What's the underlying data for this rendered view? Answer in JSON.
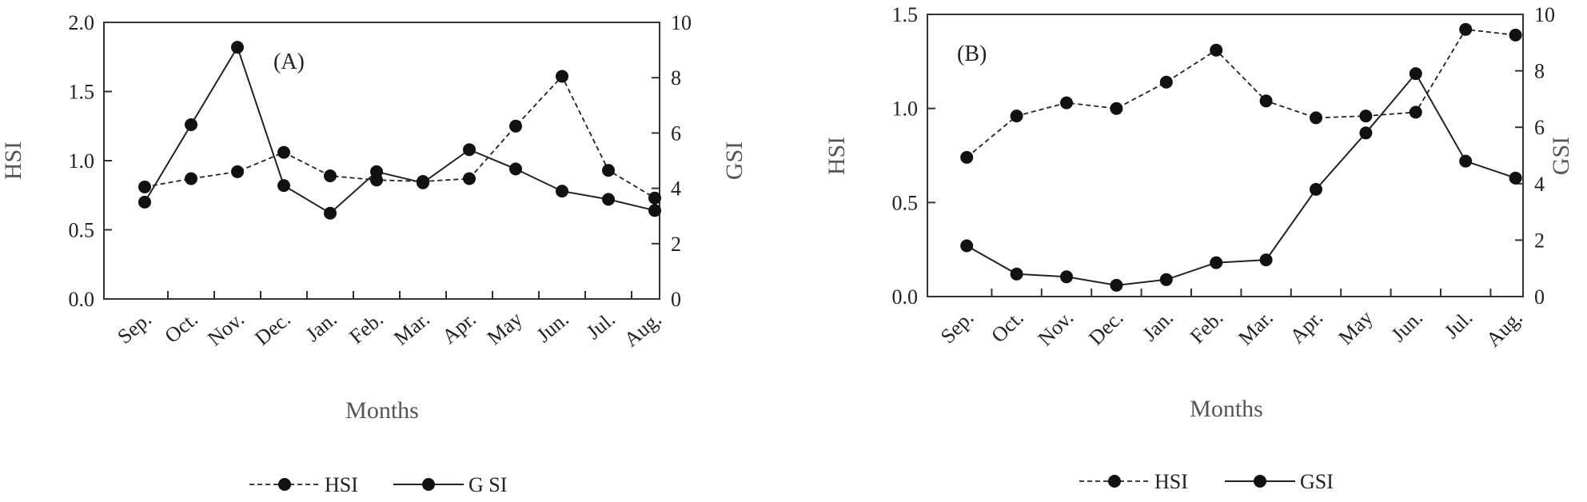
{
  "chart_data": [
    {
      "type": "line",
      "title": "",
      "annotation": "(A)",
      "categories": [
        "Sep.",
        "Oct.",
        "Nov.",
        "Dec.",
        "Jan.",
        "Feb.",
        "Mar.",
        "Apr.",
        "May",
        "Jun.",
        "Jul.",
        "Aug."
      ],
      "xlabel": "Months",
      "ylabel": "HSI",
      "y2label": "GSI",
      "ylim": [
        0,
        2.0
      ],
      "y2lim": [
        0,
        10
      ],
      "yticks": [
        "0.0",
        "0.5",
        "1.0",
        "1.5",
        "2.0"
      ],
      "y2ticks": [
        "0",
        "2",
        "4",
        "6",
        "8",
        "10"
      ],
      "grid": false,
      "legend_position": "bottom",
      "series": [
        {
          "name": "HSI",
          "axis": "left",
          "line_style": "dashed",
          "values": [
            0.81,
            0.87,
            0.92,
            1.06,
            0.89,
            0.86,
            0.85,
            0.87,
            1.25,
            1.61,
            0.93,
            0.73
          ]
        },
        {
          "name": "GSI",
          "axis": "right",
          "line_style": "solid",
          "values": [
            3.5,
            6.3,
            9.1,
            4.1,
            3.1,
            4.6,
            4.2,
            5.4,
            4.7,
            3.9,
            3.6,
            3.2
          ]
        }
      ]
    },
    {
      "type": "line",
      "title": "",
      "annotation": "(B)",
      "categories": [
        "Sep.",
        "Oct.",
        "Nov.",
        "Dec.",
        "Jan.",
        "Feb.",
        "Mar.",
        "Apr.",
        "May",
        "Jun.",
        "Jul.",
        "Aug."
      ],
      "xlabel": "Months",
      "ylabel": "HSI",
      "y2label": "GSI",
      "ylim": [
        0,
        1.5
      ],
      "y2lim": [
        0,
        10
      ],
      "yticks": [
        "0.0",
        "0.5",
        "1.0",
        "1.5"
      ],
      "y2ticks": [
        "0",
        "2",
        "4",
        "6",
        "8",
        "10"
      ],
      "grid": false,
      "legend_position": "bottom",
      "series": [
        {
          "name": "HSI",
          "axis": "left",
          "line_style": "dashed",
          "values": [
            0.74,
            0.96,
            1.03,
            1.0,
            1.14,
            1.31,
            1.04,
            0.95,
            0.96,
            0.98,
            1.42,
            1.39
          ]
        },
        {
          "name": "GSI",
          "axis": "right",
          "line_style": "solid",
          "values": [
            1.8,
            0.8,
            0.7,
            0.4,
            0.6,
            1.2,
            1.3,
            3.8,
            5.8,
            7.9,
            4.8,
            4.2
          ]
        }
      ]
    }
  ],
  "legends": [
    {
      "hsi_label": "HSI",
      "gsi_label": "G SI"
    },
    {
      "hsi_label": "HSI",
      "gsi_label": "GSI"
    }
  ],
  "colors": {
    "line": "#222222",
    "axis": "#333333",
    "label": "#555555"
  }
}
